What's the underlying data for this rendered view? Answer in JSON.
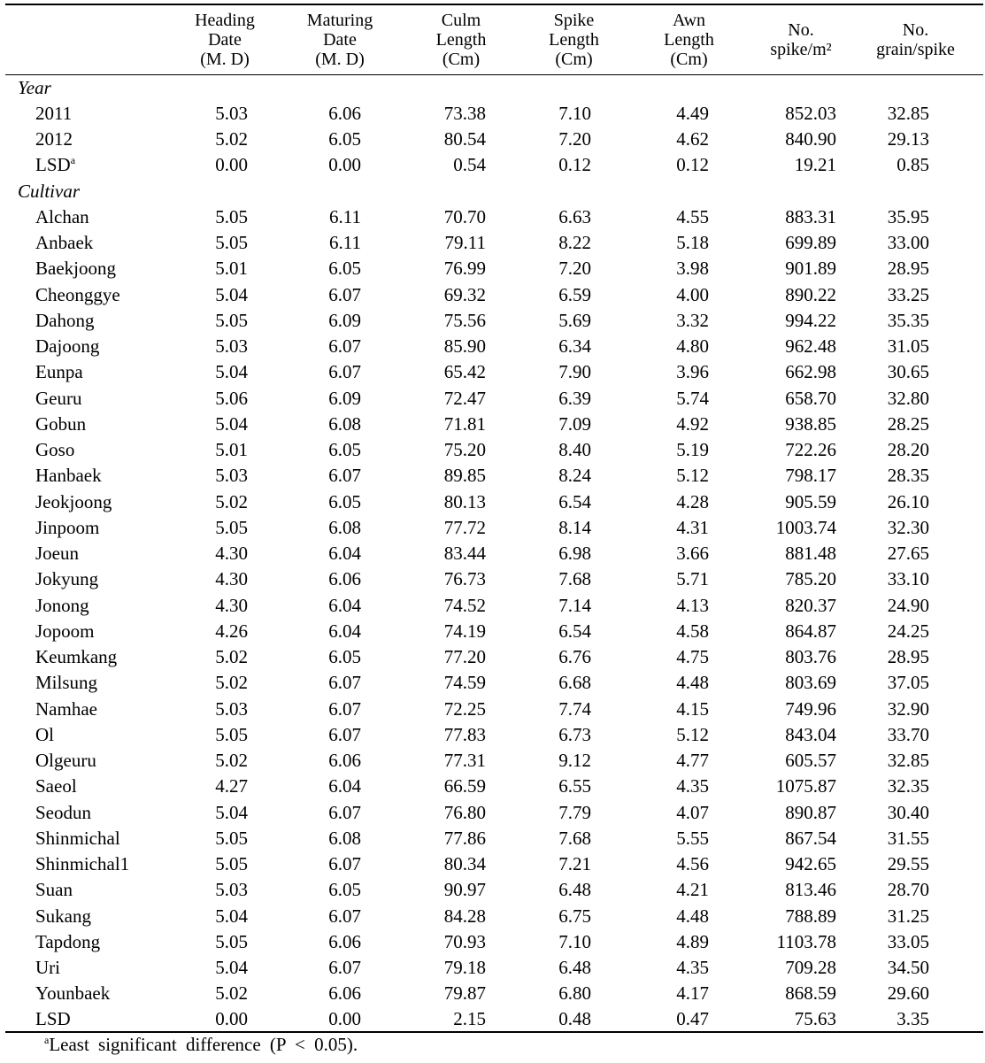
{
  "table": {
    "headers": [
      [
        "Heading",
        "Date",
        "(M. D)"
      ],
      [
        "Maturing",
        "Date",
        "(M. D)"
      ],
      [
        "Culm",
        "Length",
        "(Cm)"
      ],
      [
        "Spike",
        "Length",
        "(Cm)"
      ],
      [
        "Awn",
        "Length",
        "(Cm)"
      ],
      [
        "No.",
        "spike/m²"
      ],
      [
        "No.",
        "grain/spike"
      ]
    ],
    "sections": [
      {
        "title": "Year",
        "rows": [
          {
            "label": "2011",
            "values": [
              "5.03",
              "6.06",
              "73.38",
              "7.10",
              "4.49",
              "852.03",
              "32.85"
            ]
          },
          {
            "label": "2012",
            "values": [
              "5.02",
              "6.05",
              "80.54",
              "7.20",
              "4.62",
              "840.90",
              "29.13"
            ]
          },
          {
            "label": "LSD",
            "note": "a",
            "values": [
              "0.00",
              "0.00",
              "0.54",
              "0.12",
              "0.12",
              "19.21",
              "0.85"
            ]
          }
        ]
      },
      {
        "title": "Cultivar",
        "rows": [
          {
            "label": "Alchan",
            "values": [
              "5.05",
              "6.11",
              "70.70",
              "6.63",
              "4.55",
              "883.31",
              "35.95"
            ]
          },
          {
            "label": "Anbaek",
            "values": [
              "5.05",
              "6.11",
              "79.11",
              "8.22",
              "5.18",
              "699.89",
              "33.00"
            ]
          },
          {
            "label": "Baekjoong",
            "values": [
              "5.01",
              "6.05",
              "76.99",
              "7.20",
              "3.98",
              "901.89",
              "28.95"
            ]
          },
          {
            "label": "Cheonggye",
            "values": [
              "5.04",
              "6.07",
              "69.32",
              "6.59",
              "4.00",
              "890.22",
              "33.25"
            ]
          },
          {
            "label": "Dahong",
            "values": [
              "5.05",
              "6.09",
              "75.56",
              "5.69",
              "3.32",
              "994.22",
              "35.35"
            ]
          },
          {
            "label": "Dajoong",
            "values": [
              "5.03",
              "6.07",
              "85.90",
              "6.34",
              "4.80",
              "962.48",
              "31.05"
            ]
          },
          {
            "label": "Eunpa",
            "values": [
              "5.04",
              "6.07",
              "65.42",
              "7.90",
              "3.96",
              "662.98",
              "30.65"
            ]
          },
          {
            "label": "Geuru",
            "values": [
              "5.06",
              "6.09",
              "72.47",
              "6.39",
              "5.74",
              "658.70",
              "32.80"
            ]
          },
          {
            "label": "Gobun",
            "values": [
              "5.04",
              "6.08",
              "71.81",
              "7.09",
              "4.92",
              "938.85",
              "28.25"
            ]
          },
          {
            "label": "Goso",
            "values": [
              "5.01",
              "6.05",
              "75.20",
              "8.40",
              "5.19",
              "722.26",
              "28.20"
            ]
          },
          {
            "label": "Hanbaek",
            "values": [
              "5.03",
              "6.07",
              "89.85",
              "8.24",
              "5.12",
              "798.17",
              "28.35"
            ]
          },
          {
            "label": "Jeokjoong",
            "values": [
              "5.02",
              "6.05",
              "80.13",
              "6.54",
              "4.28",
              "905.59",
              "26.10"
            ]
          },
          {
            "label": "Jinpoom",
            "values": [
              "5.05",
              "6.08",
              "77.72",
              "8.14",
              "4.31",
              "1003.74",
              "32.30"
            ]
          },
          {
            "label": "Joeun",
            "values": [
              "4.30",
              "6.04",
              "83.44",
              "6.98",
              "3.66",
              "881.48",
              "27.65"
            ]
          },
          {
            "label": "Jokyung",
            "values": [
              "4.30",
              "6.06",
              "76.73",
              "7.68",
              "5.71",
              "785.20",
              "33.10"
            ]
          },
          {
            "label": "Jonong",
            "values": [
              "4.30",
              "6.04",
              "74.52",
              "7.14",
              "4.13",
              "820.37",
              "24.90"
            ]
          },
          {
            "label": "Jopoom",
            "values": [
              "4.26",
              "6.04",
              "74.19",
              "6.54",
              "4.58",
              "864.87",
              "24.25"
            ]
          },
          {
            "label": "Keumkang",
            "values": [
              "5.02",
              "6.05",
              "77.20",
              "6.76",
              "4.75",
              "803.76",
              "28.95"
            ]
          },
          {
            "label": "Milsung",
            "values": [
              "5.02",
              "6.07",
              "74.59",
              "6.68",
              "4.48",
              "803.69",
              "37.05"
            ]
          },
          {
            "label": "Namhae",
            "values": [
              "5.03",
              "6.07",
              "72.25",
              "7.74",
              "4.15",
              "749.96",
              "32.90"
            ]
          },
          {
            "label": "Ol",
            "values": [
              "5.05",
              "6.07",
              "77.83",
              "6.73",
              "5.12",
              "843.04",
              "33.70"
            ]
          },
          {
            "label": "Olgeuru",
            "values": [
              "5.02",
              "6.06",
              "77.31",
              "9.12",
              "4.77",
              "605.57",
              "32.85"
            ]
          },
          {
            "label": "Saeol",
            "values": [
              "4.27",
              "6.04",
              "66.59",
              "6.55",
              "4.35",
              "1075.87",
              "32.35"
            ]
          },
          {
            "label": "Seodun",
            "values": [
              "5.04",
              "6.07",
              "76.80",
              "7.79",
              "4.07",
              "890.87",
              "30.40"
            ]
          },
          {
            "label": "Shinmichal",
            "values": [
              "5.05",
              "6.08",
              "77.86",
              "7.68",
              "5.55",
              "867.54",
              "31.55"
            ]
          },
          {
            "label": "Shinmichal1",
            "values": [
              "5.05",
              "6.07",
              "80.34",
              "7.21",
              "4.56",
              "942.65",
              "29.55"
            ]
          },
          {
            "label": "Suan",
            "values": [
              "5.03",
              "6.05",
              "90.97",
              "6.48",
              "4.21",
              "813.46",
              "28.70"
            ]
          },
          {
            "label": "Sukang",
            "values": [
              "5.04",
              "6.07",
              "84.28",
              "6.75",
              "4.48",
              "788.89",
              "31.25"
            ]
          },
          {
            "label": "Tapdong",
            "values": [
              "5.05",
              "6.06",
              "70.93",
              "7.10",
              "4.89",
              "1103.78",
              "33.05"
            ]
          },
          {
            "label": "Uri",
            "values": [
              "5.04",
              "6.07",
              "79.18",
              "6.48",
              "4.35",
              "709.28",
              "34.50"
            ]
          },
          {
            "label": "Younbaek",
            "values": [
              "5.02",
              "6.06",
              "79.87",
              "6.80",
              "4.17",
              "868.59",
              "29.60"
            ]
          },
          {
            "label": "LSD",
            "values": [
              "0.00",
              "0.00",
              "2.15",
              "0.48",
              "0.47",
              "75.63",
              "3.35"
            ]
          }
        ]
      }
    ],
    "footnote": {
      "mark": "a",
      "text": "Least significant difference (P < 0.05)."
    }
  }
}
